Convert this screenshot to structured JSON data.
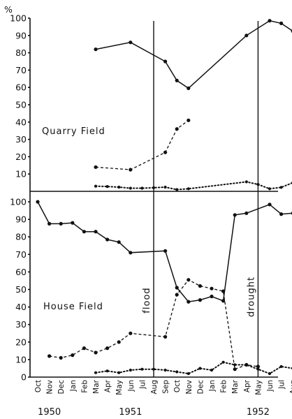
{
  "chart_data": [
    {
      "type": "line",
      "panel_label": "Quarry Field",
      "ylabel": "%",
      "ylim": [
        0,
        100
      ],
      "yticks": [
        10,
        20,
        30,
        40,
        50,
        60,
        70,
        80,
        90,
        100
      ],
      "series": [
        {
          "style": "solid",
          "points": [
            [
              "Mar-1951",
              82
            ],
            [
              "Jun-1951",
              86
            ],
            [
              "Sep-1951",
              75
            ],
            [
              "Oct-1951",
              64
            ],
            [
              "Nov-1951",
              59.5
            ],
            [
              "Apr-1952",
              90
            ],
            [
              "Jun-1952",
              98.5
            ],
            [
              "Jul-1952",
              97
            ],
            [
              "Aug-1952",
              92.5
            ]
          ]
        },
        {
          "style": "dashed",
          "points": [
            [
              "Mar-1951",
              14
            ],
            [
              "Jun-1951",
              12.5
            ],
            [
              "Sep-1951",
              22.5
            ],
            [
              "Oct-1951",
              36
            ],
            [
              "Nov-1951",
              41
            ]
          ]
        },
        {
          "style": "dotted",
          "points": [
            [
              "Mar-1951",
              3
            ],
            [
              "Apr-1951",
              2.8
            ],
            [
              "May-1951",
              2.4
            ],
            [
              "Jun-1951",
              1.8
            ],
            [
              "Jul-1951",
              1.8
            ],
            [
              "Aug-1951",
              2.1
            ],
            [
              "Sep-1951",
              2.4
            ],
            [
              "Oct-1951",
              1
            ],
            [
              "Nov-1951",
              1.5
            ],
            [
              "Apr-1952",
              5.5
            ],
            [
              "May-1952",
              4
            ],
            [
              "Jun-1952",
              1.5
            ],
            [
              "Jul-1952",
              2.3
            ],
            [
              "Aug-1952",
              5
            ]
          ]
        }
      ]
    },
    {
      "type": "line",
      "panel_label": "House Field",
      "ylim": [
        0,
        100
      ],
      "yticks": [
        0,
        10,
        20,
        30,
        40,
        50,
        60,
        70,
        80,
        90,
        100
      ],
      "series": [
        {
          "style": "solid",
          "points": [
            [
              "Oct-1950",
              100
            ],
            [
              "Nov-1950",
              87.5
            ],
            [
              "Dec-1950",
              87.5
            ],
            [
              "Jan-1951",
              88
            ],
            [
              "Feb-1951",
              83
            ],
            [
              "Mar-1951",
              83
            ],
            [
              "Apr-1951",
              78.5
            ],
            [
              "May-1951",
              77
            ],
            [
              "Jun-1951",
              71
            ],
            [
              "Sep-1951",
              72
            ],
            [
              "Oct-1951",
              51
            ],
            [
              "Nov-1951",
              43
            ],
            [
              "Dec-1951",
              44
            ],
            [
              "Jan-1952",
              46
            ],
            [
              "Feb-1952",
              43.5
            ],
            [
              "Mar-1952",
              92.5
            ],
            [
              "Apr-1952",
              93.5
            ],
            [
              "Jun-1952",
              98.5
            ],
            [
              "Jul-1952",
              93
            ],
            [
              "Aug-1952",
              93.5
            ]
          ]
        },
        {
          "style": "dashed",
          "points": [
            [
              "Nov-1950",
              12
            ],
            [
              "Dec-1950",
              11
            ],
            [
              "Jan-1951",
              12.5
            ],
            [
              "Feb-1951",
              16.5
            ],
            [
              "Mar-1951",
              14
            ],
            [
              "Apr-1951",
              16.5
            ],
            [
              "May-1951",
              20
            ],
            [
              "Jun-1951",
              25
            ],
            [
              "Sep-1951",
              23
            ],
            [
              "Oct-1951",
              47
            ],
            [
              "Nov-1951",
              55.5
            ],
            [
              "Dec-1951",
              52
            ],
            [
              "Jan-1952",
              50.5
            ],
            [
              "Feb-1952",
              49
            ],
            [
              "Mar-1952",
              4.5
            ],
            [
              "Apr-1952",
              7
            ],
            [
              "May-1952",
              6
            ]
          ]
        },
        {
          "style": "dotted",
          "points": [
            [
              "Mar-1951",
              2.5
            ],
            [
              "Apr-1951",
              3.5
            ],
            [
              "May-1951",
              2.5
            ],
            [
              "Jun-1951",
              4
            ],
            [
              "Jul-1951",
              4.5
            ],
            [
              "Aug-1951",
              4.5
            ],
            [
              "Sep-1951",
              4
            ],
            [
              "Oct-1951",
              3
            ],
            [
              "Nov-1951",
              2
            ],
            [
              "Dec-1951",
              5
            ],
            [
              "Jan-1952",
              4
            ],
            [
              "Feb-1952",
              8.5
            ],
            [
              "Mar-1952",
              7
            ],
            [
              "Apr-1952",
              7
            ],
            [
              "May-1952",
              4.5
            ],
            [
              "Jun-1952",
              2
            ],
            [
              "Jul-1952",
              6
            ],
            [
              "Aug-1952",
              5
            ]
          ]
        }
      ]
    }
  ],
  "x_months": [
    "Oct",
    "Nov",
    "Dec",
    "Jan",
    "Feb",
    "Mar",
    "Apr",
    "May",
    "Jun",
    "Jul",
    "Aug",
    "Sep",
    "Oct",
    "Nov",
    "Dec",
    "Jan",
    "Feb",
    "Mar",
    "Apr",
    "May",
    "Jun",
    "Jul",
    "Aug"
  ],
  "x_keys": [
    "Oct-1950",
    "Nov-1950",
    "Dec-1950",
    "Jan-1951",
    "Feb-1951",
    "Mar-1951",
    "Apr-1951",
    "May-1951",
    "Jun-1951",
    "Jul-1951",
    "Aug-1951",
    "Sep-1951",
    "Oct-1951",
    "Nov-1951",
    "Dec-1951",
    "Jan-1952",
    "Feb-1952",
    "Mar-1952",
    "Apr-1952",
    "May-1952",
    "Jun-1952",
    "Jul-1952",
    "Aug-1952"
  ],
  "years": [
    {
      "label": "1950",
      "at": "Nov-1950"
    },
    {
      "label": "1951",
      "at": "Jun-1951"
    },
    {
      "label": "1952",
      "at": "May-1952"
    }
  ],
  "events": [
    {
      "label": "flood",
      "at": "Aug-1951"
    },
    {
      "label": "drought",
      "at": "May-1952"
    }
  ]
}
